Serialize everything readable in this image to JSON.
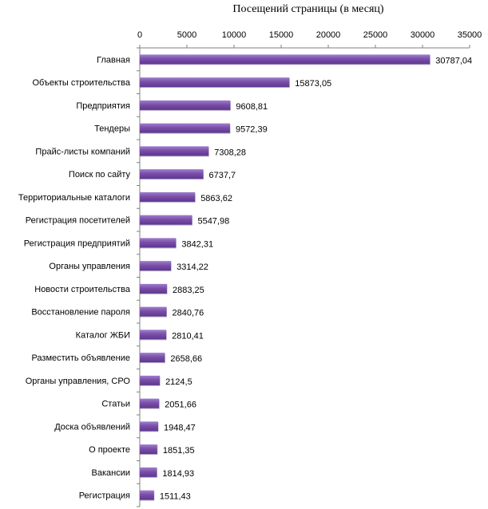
{
  "chart_data": {
    "type": "bar",
    "orientation": "horizontal",
    "title": "Посещений страницы (в месяц)",
    "xlabel": "",
    "ylabel": "",
    "xlim": [
      0,
      35000
    ],
    "x_ticks": [
      0,
      5000,
      10000,
      15000,
      20000,
      25000,
      30000,
      35000
    ],
    "x_axis_position": "top",
    "grid": false,
    "bar_color": "#7a4fa8",
    "categories": [
      "Главная",
      "Объекты строительства",
      "Предприятия",
      "Тендеры",
      "Прайс-листы компаний",
      "Поиск по сайту",
      "Территориальные каталоги",
      "Регистрация посетителей",
      "Регистрация предприятий",
      "Органы управления",
      "Новости строительства",
      "Восстановление пароля",
      "Каталог ЖБИ",
      "Разместить объявление",
      "Органы управления, СРО",
      "Статьи",
      "Доска объявлений",
      "О проекте",
      "Вакансии",
      "Регистрация"
    ],
    "values": [
      30787.04,
      15873.05,
      9608.81,
      9572.39,
      7308.28,
      6737.7,
      5863.62,
      5547.98,
      3842.31,
      3314.22,
      2883.25,
      2840.76,
      2810.41,
      2658.66,
      2124.5,
      2051.66,
      1948.47,
      1851.35,
      1814.93,
      1511.43
    ],
    "value_labels": [
      "30787,04",
      "15873,05",
      "9608,81",
      "9572,39",
      "7308,28",
      "6737,7",
      "5863,62",
      "5547,98",
      "3842,31",
      "3314,22",
      "2883,25",
      "2840,76",
      "2810,41",
      "2658,66",
      "2124,5",
      "2051,66",
      "1948,47",
      "1851,35",
      "1814,93",
      "1511,43"
    ]
  }
}
